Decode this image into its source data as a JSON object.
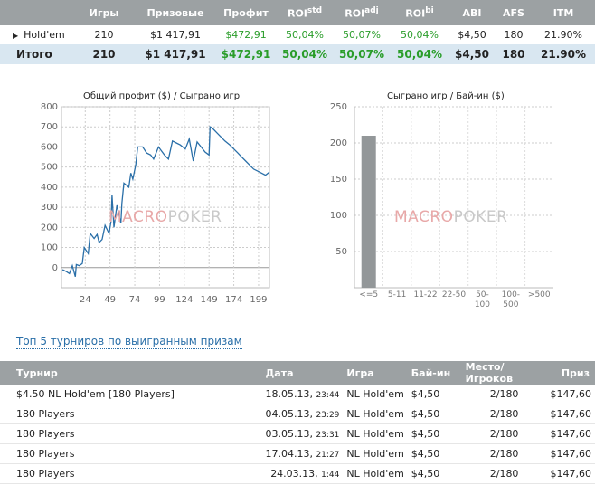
{
  "summary": {
    "headers": [
      "",
      "Игры",
      "Призовые",
      "Профит",
      "ROI",
      "ROI",
      "ROI",
      "ABI",
      "AFS",
      "ITM"
    ],
    "header_sups": [
      "",
      "",
      "",
      "",
      "std",
      "adj",
      "bi",
      "",
      "",
      ""
    ],
    "rows": [
      {
        "name": "Hold'em",
        "games": "210",
        "prizes": "$1 417,91",
        "profit": "$472,91",
        "roi_std": "50,04%",
        "roi_adj": "50,07%",
        "roi_bi": "50,04%",
        "abi": "$4,50",
        "afs": "180",
        "itm": "21.90%"
      },
      {
        "name": "Итого",
        "games": "210",
        "prizes": "$1 417,91",
        "profit": "$472,91",
        "roi_std": "50,04%",
        "roi_adj": "50,07%",
        "roi_bi": "50,04%",
        "abi": "$4,50",
        "afs": "180",
        "itm": "21.90%"
      }
    ]
  },
  "watermark": {
    "part1": "MACRO",
    "part2": "POKER"
  },
  "chart_data": [
    {
      "type": "line",
      "title": "Общий профит ($) / Сыграно игр",
      "xlabel": "",
      "ylabel": "",
      "xlim": [
        0,
        210
      ],
      "ylim": [
        -100,
        800
      ],
      "xticks": [
        24,
        49,
        74,
        99,
        124,
        149,
        174,
        199
      ],
      "yticks": [
        0,
        100,
        200,
        300,
        400,
        500,
        600,
        700,
        800
      ],
      "grid": true,
      "color": "#2a6fa8",
      "x": [
        1,
        5,
        8,
        11,
        14,
        15,
        18,
        21,
        23,
        27,
        29,
        33,
        36,
        38,
        41,
        44,
        48,
        50,
        51,
        53,
        56,
        60,
        61,
        63,
        68,
        70,
        72,
        75,
        77,
        82,
        86,
        90,
        93,
        98,
        101,
        104,
        108,
        112,
        116,
        120,
        125,
        129,
        133,
        137,
        141,
        145,
        149,
        150,
        153,
        157,
        161,
        165,
        170,
        174,
        178,
        182,
        186,
        190,
        194,
        198,
        202,
        206,
        210
      ],
      "y": [
        -10,
        -20,
        -30,
        10,
        -45,
        15,
        10,
        20,
        100,
        70,
        170,
        145,
        165,
        125,
        140,
        210,
        170,
        230,
        360,
        200,
        310,
        220,
        320,
        420,
        400,
        470,
        440,
        510,
        600,
        600,
        570,
        560,
        540,
        600,
        580,
        560,
        540,
        630,
        620,
        610,
        590,
        640,
        530,
        625,
        600,
        575,
        560,
        700,
        690,
        670,
        650,
        630,
        610,
        590,
        570,
        550,
        530,
        510,
        490,
        480,
        470,
        460,
        475
      ]
    },
    {
      "type": "bar",
      "title": "Сыграно игр / Бай-ин ($)",
      "xlabel": "",
      "ylabel": "",
      "categories": [
        "<=5",
        "5-11",
        "11-22",
        "22-50",
        "50-\n100",
        "100-\n500",
        ">500"
      ],
      "values": [
        210,
        0,
        0,
        0,
        0,
        0,
        0
      ],
      "ylim": [
        0,
        250
      ],
      "yticks": [
        50,
        100,
        150,
        200,
        250
      ],
      "grid": true,
      "color": "#939799"
    }
  ],
  "top_link": "Топ 5 турниров по выигранным призам",
  "top": {
    "headers": [
      "Турнир",
      "Дата",
      "Игра",
      "Бай-ин",
      "Место/Игроков",
      "Приз"
    ],
    "rows": [
      {
        "name": "$4.50 NL Hold'em [180 Players]",
        "date": "18.05.13,",
        "time": "23:44",
        "game": "NL Hold'em",
        "buyin": "$4,50",
        "place": "2/180",
        "prize": "$147,60"
      },
      {
        "name": "180 Players",
        "date": "04.05.13,",
        "time": "23:29",
        "game": "NL Hold'em",
        "buyin": "$4,50",
        "place": "2/180",
        "prize": "$147,60"
      },
      {
        "name": "180 Players",
        "date": "03.05.13,",
        "time": "23:31",
        "game": "NL Hold'em",
        "buyin": "$4,50",
        "place": "2/180",
        "prize": "$147,60"
      },
      {
        "name": "180 Players",
        "date": "17.04.13,",
        "time": "21:27",
        "game": "NL Hold'em",
        "buyin": "$4,50",
        "place": "2/180",
        "prize": "$147,60"
      },
      {
        "name": "180 Players",
        "date": "24.03.13,",
        "time": "1:44",
        "game": "NL Hold'em",
        "buyin": "$4,50",
        "place": "2/180",
        "prize": "$147,60"
      }
    ]
  }
}
